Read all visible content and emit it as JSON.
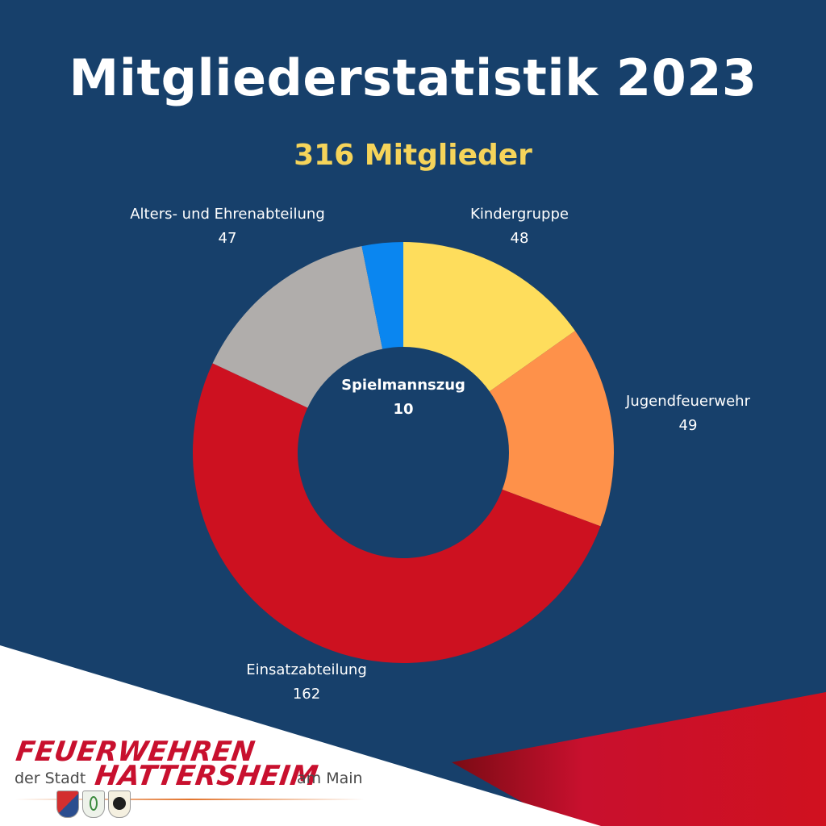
{
  "header": {
    "title": "Mitgliederstatistik 2023",
    "subtitle": "316 Mitglieder"
  },
  "chart_data": {
    "type": "pie",
    "title": "Mitgliederstatistik 2023",
    "subtitle": "316 Mitglieder",
    "donut": true,
    "categories": [
      "Kindergruppe",
      "Jugendfeuerwehr",
      "Einsatzabteilung",
      "Alters- und Ehrenabteilung",
      "Spielmannszug"
    ],
    "values": [
      48,
      49,
      162,
      47,
      10
    ],
    "colors": [
      "#fedd5c",
      "#fe914a",
      "#cd1120",
      "#b0adab",
      "#0a86f0"
    ],
    "labels": [
      {
        "name": "Kindergruppe",
        "value": "48"
      },
      {
        "name": "Jugendfeuerwehr",
        "value": "49"
      },
      {
        "name": "Einsatzabteilung",
        "value": "162"
      },
      {
        "name": "Alters- und Ehrenabteilung",
        "value": "47"
      },
      {
        "name": "Spielmannszug",
        "value": "10"
      }
    ]
  },
  "logo": {
    "line1": "FEUERWEHREN",
    "prefix": "der Stadt",
    "name": "HATTERSHEIM",
    "suffix": "am Main",
    "crests": [
      "crest-icon",
      "crest-icon",
      "crest-icon"
    ]
  },
  "colors": {
    "background": "#17406b",
    "title": "#ffffff",
    "subtitle": "#f6d45a",
    "accent_red": "#c8102e",
    "footer_white": "#ffffff"
  }
}
